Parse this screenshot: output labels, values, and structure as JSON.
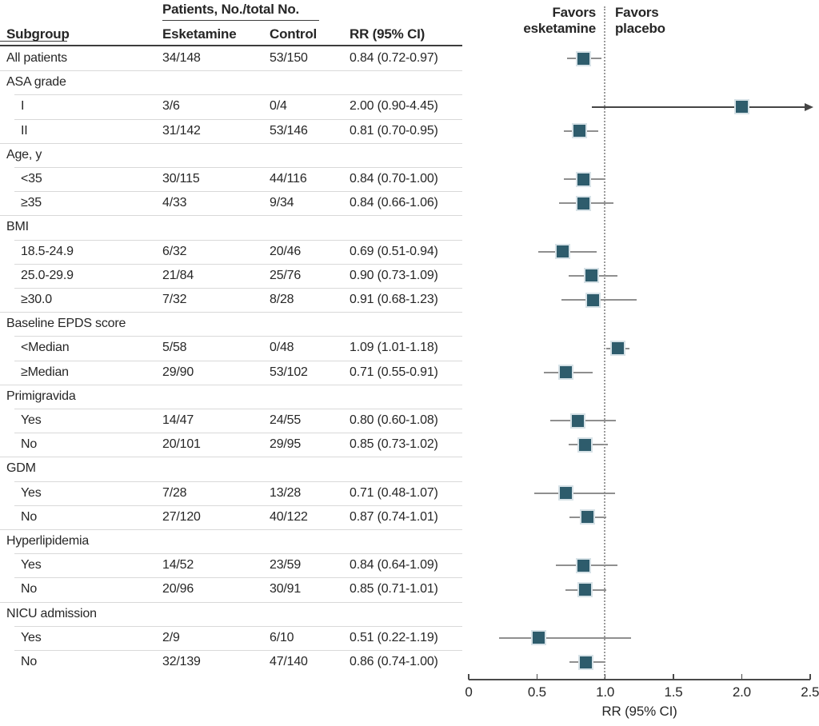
{
  "figure": {
    "table": {
      "patients_header": "Patients, No./total No.",
      "columns": {
        "subgroup": "Subgroup",
        "esketamine": "Esketamine",
        "control": "Control",
        "rr": "RR (95% CI)"
      },
      "rows": [
        {
          "type": "data",
          "indent": false,
          "label": "All patients",
          "esketamine": "34/148",
          "control": "53/150",
          "rr_text": "0.84 (0.72-0.97)",
          "rr": 0.84,
          "lo": 0.72,
          "hi": 0.97
        },
        {
          "type": "section",
          "label": "ASA grade"
        },
        {
          "type": "data",
          "indent": true,
          "label": "I",
          "esketamine": "3/6",
          "control": "0/4",
          "rr_text": "2.00 (0.90-4.45)",
          "rr": 2.0,
          "lo": 0.9,
          "hi": 4.45,
          "arrow": true
        },
        {
          "type": "data",
          "indent": true,
          "label": "II",
          "esketamine": "31/142",
          "control": "53/146",
          "rr_text": "0.81 (0.70-0.95)",
          "rr": 0.81,
          "lo": 0.7,
          "hi": 0.95
        },
        {
          "type": "section",
          "label": "Age, y"
        },
        {
          "type": "data",
          "indent": true,
          "label": "<35",
          "esketamine": "30/115",
          "control": "44/116",
          "rr_text": "0.84 (0.70-1.00)",
          "rr": 0.84,
          "lo": 0.7,
          "hi": 1.0
        },
        {
          "type": "data",
          "indent": true,
          "label": "≥35",
          "esketamine": "4/33",
          "control": "9/34",
          "rr_text": "0.84 (0.66-1.06)",
          "rr": 0.84,
          "lo": 0.66,
          "hi": 1.06
        },
        {
          "type": "section",
          "label": "BMI"
        },
        {
          "type": "data",
          "indent": true,
          "label": "18.5-24.9",
          "esketamine": "6/32",
          "control": "20/46",
          "rr_text": "0.69 (0.51-0.94)",
          "rr": 0.69,
          "lo": 0.51,
          "hi": 0.94
        },
        {
          "type": "data",
          "indent": true,
          "label": "25.0-29.9",
          "esketamine": "21/84",
          "control": "25/76",
          "rr_text": "0.90 (0.73-1.09)",
          "rr": 0.9,
          "lo": 0.73,
          "hi": 1.09
        },
        {
          "type": "data",
          "indent": true,
          "label": "≥30.0",
          "esketamine": "7/32",
          "control": "8/28",
          "rr_text": "0.91 (0.68-1.23)",
          "rr": 0.91,
          "lo": 0.68,
          "hi": 1.23
        },
        {
          "type": "section",
          "label": "Baseline EPDS score"
        },
        {
          "type": "data",
          "indent": true,
          "label": "<Median",
          "esketamine": "5/58",
          "control": "0/48",
          "rr_text": "1.09 (1.01-1.18)",
          "rr": 1.09,
          "lo": 1.01,
          "hi": 1.18
        },
        {
          "type": "data",
          "indent": true,
          "label": "≥Median",
          "esketamine": "29/90",
          "control": "53/102",
          "rr_text": "0.71 (0.55-0.91)",
          "rr": 0.71,
          "lo": 0.55,
          "hi": 0.91
        },
        {
          "type": "section",
          "label": "Primigravida"
        },
        {
          "type": "data",
          "indent": true,
          "label": "Yes",
          "esketamine": "14/47",
          "control": "24/55",
          "rr_text": "0.80 (0.60-1.08)",
          "rr": 0.8,
          "lo": 0.6,
          "hi": 1.08
        },
        {
          "type": "data",
          "indent": true,
          "label": "No",
          "esketamine": "20/101",
          "control": "29/95",
          "rr_text": "0.85 (0.73-1.02)",
          "rr": 0.85,
          "lo": 0.73,
          "hi": 1.02
        },
        {
          "type": "section",
          "label": "GDM"
        },
        {
          "type": "data",
          "indent": true,
          "label": "Yes",
          "esketamine": "7/28",
          "control": "13/28",
          "rr_text": "0.71 (0.48-1.07)",
          "rr": 0.71,
          "lo": 0.48,
          "hi": 1.07
        },
        {
          "type": "data",
          "indent": true,
          "label": "No",
          "esketamine": "27/120",
          "control": "40/122",
          "rr_text": "0.87 (0.74-1.01)",
          "rr": 0.87,
          "lo": 0.74,
          "hi": 1.01
        },
        {
          "type": "section",
          "label": "Hyperlipidemia"
        },
        {
          "type": "data",
          "indent": true,
          "label": "Yes",
          "esketamine": "14/52",
          "control": "23/59",
          "rr_text": "0.84 (0.64-1.09)",
          "rr": 0.84,
          "lo": 0.64,
          "hi": 1.09
        },
        {
          "type": "data",
          "indent": true,
          "label": "No",
          "esketamine": "20/96",
          "control": "30/91",
          "rr_text": "0.85 (0.71-1.01)",
          "rr": 0.85,
          "lo": 0.71,
          "hi": 1.01
        },
        {
          "type": "section",
          "label": "NICU admission"
        },
        {
          "type": "data",
          "indent": true,
          "label": "Yes",
          "esketamine": "2/9",
          "control": "6/10",
          "rr_text": "0.51 (0.22-1.19)",
          "rr": 0.51,
          "lo": 0.22,
          "hi": 1.19
        },
        {
          "type": "data",
          "indent": true,
          "label": "No",
          "esketamine": "32/139",
          "control": "47/140",
          "rr_text": "0.86 (0.74-1.00)",
          "rr": 0.86,
          "lo": 0.74,
          "hi": 1.0
        }
      ]
    },
    "plot": {
      "favors_left": "Favors esketamine",
      "favors_right": "Favors placebo",
      "axis_label": "RR (95% CI)",
      "ref_line": 1.0,
      "xmin": 0,
      "xmax": 2.5,
      "marker_color": "#2e5c6c",
      "ci_line_color": "#8f8f8f",
      "ticks": [
        {
          "label": "0",
          "value": 0
        },
        {
          "label": "0.5",
          "value": 0.5
        },
        {
          "label": "1.0",
          "value": 1.0
        },
        {
          "label": "1.5",
          "value": 1.5
        },
        {
          "label": "2.0",
          "value": 2.0
        },
        {
          "label": "2.5",
          "value": 2.5
        }
      ]
    }
  },
  "chart_data": {
    "type": "scatter",
    "subtype": "forest-plot",
    "title": "",
    "xlabel": "RR (95% CI)",
    "xlim": [
      0,
      2.5
    ],
    "ref_line": 1.0,
    "grid": false,
    "annotations": [
      "Favors esketamine",
      "Favors placebo"
    ],
    "points": [
      {
        "label": "All patients",
        "rr": 0.84,
        "ci": [
          0.72,
          0.97
        ]
      },
      {
        "label": "ASA grade I",
        "rr": 2.0,
        "ci": [
          0.9,
          4.45
        ],
        "ci_exceeds_axis": true
      },
      {
        "label": "ASA grade II",
        "rr": 0.81,
        "ci": [
          0.7,
          0.95
        ]
      },
      {
        "label": "Age <35",
        "rr": 0.84,
        "ci": [
          0.7,
          1.0
        ]
      },
      {
        "label": "Age ≥35",
        "rr": 0.84,
        "ci": [
          0.66,
          1.06
        ]
      },
      {
        "label": "BMI 18.5-24.9",
        "rr": 0.69,
        "ci": [
          0.51,
          0.94
        ]
      },
      {
        "label": "BMI 25.0-29.9",
        "rr": 0.9,
        "ci": [
          0.73,
          1.09
        ]
      },
      {
        "label": "BMI ≥30.0",
        "rr": 0.91,
        "ci": [
          0.68,
          1.23
        ]
      },
      {
        "label": "Baseline EPDS <Median",
        "rr": 1.09,
        "ci": [
          1.01,
          1.18
        ]
      },
      {
        "label": "Baseline EPDS ≥Median",
        "rr": 0.71,
        "ci": [
          0.55,
          0.91
        ]
      },
      {
        "label": "Primigravida Yes",
        "rr": 0.8,
        "ci": [
          0.6,
          1.08
        ]
      },
      {
        "label": "Primigravida No",
        "rr": 0.85,
        "ci": [
          0.73,
          1.02
        ]
      },
      {
        "label": "GDM Yes",
        "rr": 0.71,
        "ci": [
          0.48,
          1.07
        ]
      },
      {
        "label": "GDM No",
        "rr": 0.87,
        "ci": [
          0.74,
          1.01
        ]
      },
      {
        "label": "Hyperlipidemia Yes",
        "rr": 0.84,
        "ci": [
          0.64,
          1.09
        ]
      },
      {
        "label": "Hyperlipidemia No",
        "rr": 0.85,
        "ci": [
          0.71,
          1.01
        ]
      },
      {
        "label": "NICU admission Yes",
        "rr": 0.51,
        "ci": [
          0.22,
          1.19
        ]
      },
      {
        "label": "NICU admission No",
        "rr": 0.86,
        "ci": [
          0.74,
          1.0
        ]
      }
    ]
  }
}
